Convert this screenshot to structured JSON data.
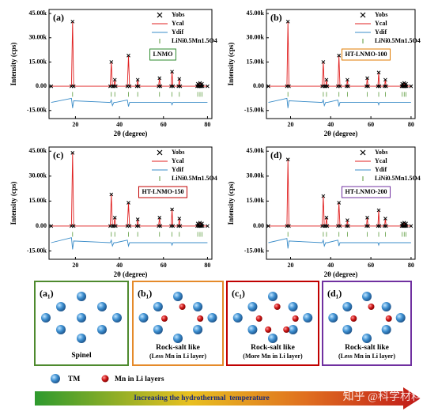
{
  "chart_data": [
    {
      "type": "xrd",
      "panel_label": "(a)",
      "sample": "LNMO",
      "sample_color": "#2e8b2e",
      "xlabel": "2θ (degree)",
      "ylabel": "Intensity (cps)",
      "xlim": [
        8,
        82
      ],
      "xticks": [
        20,
        40,
        60,
        80
      ],
      "ylim": [
        -20000,
        47500
      ],
      "yticks": [
        {
          "value": 45000,
          "label": "45.00k"
        },
        {
          "value": 30000,
          "label": "30.00k"
        },
        {
          "value": 15000,
          "label": "15.00k"
        },
        {
          "value": 0,
          "label": "0.00"
        },
        {
          "value": -15000,
          "label": "-15.00k"
        }
      ],
      "x": [
        9,
        18.2,
        18.7,
        19.2,
        35.8,
        36.3,
        36.8,
        37.5,
        37.9,
        38.3,
        43.6,
        44.1,
        44.6,
        47.9,
        48.3,
        48.7,
        57.8,
        58.2,
        58.6,
        63.5,
        63.9,
        64.3,
        66.8,
        67.2,
        67.6,
        75.3,
        75.6,
        75.9,
        76.3,
        76.6,
        76.9,
        77.2,
        77.5,
        77.8,
        80
      ],
      "series": [
        {
          "name": "Yobs",
          "color": "#000000",
          "values": [
            0,
            0,
            40000,
            0,
            0,
            15000,
            0,
            0,
            4000,
            0,
            0,
            19000,
            0,
            0,
            4000,
            0,
            0,
            5000,
            0,
            0,
            9000,
            0,
            0,
            4500,
            0,
            0,
            1500,
            0,
            0,
            2000,
            0,
            0,
            1500,
            0,
            0
          ]
        },
        {
          "name": "Ycal",
          "color": "#e02020",
          "values": [
            0,
            0,
            40000,
            0,
            0,
            15000,
            0,
            0,
            4000,
            0,
            0,
            19000,
            0,
            0,
            4000,
            0,
            0,
            5000,
            0,
            0,
            9000,
            0,
            0,
            4500,
            0,
            0,
            1500,
            0,
            0,
            2000,
            0,
            0,
            1500,
            0,
            0
          ]
        },
        {
          "name": "Ydif",
          "color": "#3a8cc8",
          "values": [
            -10000,
            -7500,
            -13500,
            -9000,
            -10000,
            -8500,
            -12000,
            -10000,
            -10000,
            -10000,
            -8500,
            -12500,
            -10000,
            -10000,
            -10000,
            -10000,
            -10000,
            -10000,
            -10000,
            -10000,
            -11500,
            -10000,
            -10000,
            -10000,
            -10000,
            -10000,
            -10000,
            -10000,
            -10000,
            -10000,
            -10000,
            -10000,
            -10000,
            -10000,
            -10000
          ]
        }
      ],
      "bragg": {
        "name": "LiNi0.5Mn1.5O4",
        "color": "#5a9a3a",
        "x": [
          18.7,
          36.3,
          37.9,
          44.1,
          48.3,
          58.2,
          63.9,
          67.2,
          75.6,
          76.6,
          77.5
        ]
      }
    },
    {
      "type": "xrd",
      "panel_label": "(b)",
      "sample": "HT-LNMO-100",
      "sample_color": "#e07b00",
      "xlabel": "2θ (degree)",
      "ylabel": "Intensity (cps)",
      "xlim": [
        8,
        82
      ],
      "xticks": [
        20,
        40,
        60,
        80
      ],
      "ylim": [
        -20000,
        47500
      ],
      "yticks": [
        {
          "value": 45000,
          "label": "45.00k"
        },
        {
          "value": 30000,
          "label": "30.00k"
        },
        {
          "value": 15000,
          "label": "15.00k"
        },
        {
          "value": 0,
          "label": "0.00"
        },
        {
          "value": -15000,
          "label": "-15.00k"
        }
      ],
      "x": [
        9,
        18.2,
        18.7,
        19.2,
        35.8,
        36.3,
        36.8,
        37.5,
        37.9,
        38.3,
        43.6,
        44.1,
        44.6,
        47.9,
        48.3,
        48.7,
        57.8,
        58.2,
        58.6,
        63.5,
        63.9,
        64.3,
        66.8,
        67.2,
        67.6,
        75.3,
        75.6,
        75.9,
        76.3,
        76.6,
        76.9,
        77.2,
        77.5,
        77.8,
        80
      ],
      "series": [
        {
          "name": "Yobs",
          "color": "#000000",
          "values": [
            0,
            0,
            40000,
            0,
            0,
            15000,
            0,
            0,
            4000,
            0,
            0,
            19000,
            0,
            0,
            4000,
            0,
            0,
            5000,
            0,
            0,
            8500,
            0,
            0,
            4000,
            0,
            0,
            1500,
            0,
            0,
            2000,
            0,
            0,
            1500,
            0,
            0
          ]
        },
        {
          "name": "Ycal",
          "color": "#e02020",
          "values": [
            0,
            0,
            40000,
            0,
            0,
            15000,
            0,
            0,
            4000,
            0,
            0,
            19000,
            0,
            0,
            4000,
            0,
            0,
            5000,
            0,
            0,
            8500,
            0,
            0,
            4000,
            0,
            0,
            1500,
            0,
            0,
            2000,
            0,
            0,
            1500,
            0,
            0
          ]
        },
        {
          "name": "Ydif",
          "color": "#3a8cc8",
          "values": [
            -10000,
            -7500,
            -13500,
            -9000,
            -10000,
            -8500,
            -12000,
            -10000,
            -10000,
            -10000,
            -8500,
            -12500,
            -10000,
            -10000,
            -10000,
            -10000,
            -10000,
            -10000,
            -10000,
            -10000,
            -11500,
            -10000,
            -10000,
            -10000,
            -10000,
            -10000,
            -10000,
            -10000,
            -10000,
            -10000,
            -10000,
            -10000,
            -10000,
            -10000,
            -10000
          ]
        }
      ],
      "bragg": {
        "name": "LiNi0.5Mn1.5O4",
        "color": "#5a9a3a",
        "x": [
          18.7,
          36.3,
          37.9,
          44.1,
          48.3,
          58.2,
          63.9,
          67.2,
          75.6,
          76.6,
          77.5
        ]
      }
    },
    {
      "type": "xrd",
      "panel_label": "(c)",
      "sample": "HT-LNMO-150",
      "sample_color": "#c00000",
      "xlabel": "2θ (degree)",
      "ylabel": "Intensity (cps)",
      "xlim": [
        8,
        82
      ],
      "xticks": [
        20,
        40,
        60,
        80
      ],
      "ylim": [
        -20000,
        47500
      ],
      "yticks": [
        {
          "value": 45000,
          "label": "45.00k"
        },
        {
          "value": 30000,
          "label": "30.00k"
        },
        {
          "value": 15000,
          "label": "15.00k"
        },
        {
          "value": 0,
          "label": "0.00"
        },
        {
          "value": -15000,
          "label": "-15.00k"
        }
      ],
      "x": [
        9,
        18.2,
        18.7,
        19.2,
        35.8,
        36.3,
        36.8,
        37.5,
        37.9,
        38.3,
        43.6,
        44.1,
        44.6,
        47.9,
        48.3,
        48.7,
        57.8,
        58.2,
        58.6,
        63.5,
        63.9,
        64.3,
        66.8,
        67.2,
        67.6,
        75.3,
        75.6,
        75.9,
        76.3,
        76.6,
        76.9,
        77.2,
        77.5,
        77.8,
        80
      ],
      "series": [
        {
          "name": "Yobs",
          "color": "#000000",
          "values": [
            0,
            0,
            44000,
            0,
            0,
            19000,
            0,
            0,
            5000,
            0,
            0,
            14000,
            0,
            0,
            4000,
            0,
            0,
            5000,
            0,
            0,
            10000,
            0,
            0,
            4500,
            0,
            0,
            1500,
            0,
            0,
            2000,
            0,
            0,
            1500,
            0,
            0
          ]
        },
        {
          "name": "Ycal",
          "color": "#e02020",
          "values": [
            0,
            0,
            44000,
            0,
            0,
            19000,
            0,
            0,
            5000,
            0,
            0,
            14000,
            0,
            0,
            4000,
            0,
            0,
            5000,
            0,
            0,
            10000,
            0,
            0,
            4500,
            0,
            0,
            1500,
            0,
            0,
            2000,
            0,
            0,
            1500,
            0,
            0
          ]
        },
        {
          "name": "Ydif",
          "color": "#3a8cc8",
          "values": [
            -10000,
            -7000,
            -14000,
            -9000,
            -10000,
            -8500,
            -12000,
            -10000,
            -10000,
            -10000,
            -8500,
            -12000,
            -10000,
            -10000,
            -10000,
            -10000,
            -10000,
            -10000,
            -10000,
            -10000,
            -11500,
            -10000,
            -10000,
            -10000,
            -10000,
            -10000,
            -10000,
            -10000,
            -10000,
            -10000,
            -10000,
            -10000,
            -10000,
            -10000,
            -10000
          ]
        }
      ],
      "bragg": {
        "name": "LiNi0.5Mn1.5O4",
        "color": "#5a9a3a",
        "x": [
          18.7,
          36.3,
          37.9,
          44.1,
          48.3,
          58.2,
          63.9,
          67.2,
          75.6,
          76.6,
          77.5
        ]
      }
    },
    {
      "type": "xrd",
      "panel_label": "(d)",
      "sample": "HT-LNMO-200",
      "sample_color": "#7030a0",
      "xlabel": "2θ (degree)",
      "ylabel": "Intensity (cps)",
      "xlim": [
        8,
        82
      ],
      "xticks": [
        20,
        40,
        60,
        80
      ],
      "ylim": [
        -20000,
        47500
      ],
      "yticks": [
        {
          "value": 45000,
          "label": "45.00k"
        },
        {
          "value": 30000,
          "label": "30.00k"
        },
        {
          "value": 15000,
          "label": "15.00k"
        },
        {
          "value": 0,
          "label": "0.00"
        },
        {
          "value": -15000,
          "label": "-15.00k"
        }
      ],
      "x": [
        9,
        18.2,
        18.7,
        19.2,
        35.8,
        36.3,
        36.8,
        37.5,
        37.9,
        38.3,
        43.6,
        44.1,
        44.6,
        47.9,
        48.3,
        48.7,
        57.8,
        58.2,
        58.6,
        63.5,
        63.9,
        64.3,
        66.8,
        67.2,
        67.6,
        75.3,
        75.6,
        75.9,
        76.3,
        76.6,
        76.9,
        77.2,
        77.5,
        77.8,
        80
      ],
      "series": [
        {
          "name": "Yobs",
          "color": "#000000",
          "values": [
            0,
            0,
            40000,
            0,
            0,
            18000,
            0,
            0,
            5000,
            0,
            0,
            14000,
            0,
            0,
            3500,
            0,
            0,
            5000,
            0,
            0,
            9500,
            0,
            0,
            4500,
            0,
            0,
            1500,
            0,
            0,
            2000,
            0,
            0,
            1500,
            0,
            0
          ]
        },
        {
          "name": "Ycal",
          "color": "#e02020",
          "values": [
            0,
            0,
            40000,
            0,
            0,
            18000,
            0,
            0,
            5000,
            0,
            0,
            14000,
            0,
            0,
            3500,
            0,
            0,
            5000,
            0,
            0,
            9500,
            0,
            0,
            4500,
            0,
            0,
            1500,
            0,
            0,
            2000,
            0,
            0,
            1500,
            0,
            0
          ]
        },
        {
          "name": "Ydif",
          "color": "#3a8cc8",
          "values": [
            -10000,
            -7500,
            -13500,
            -9000,
            -10000,
            -8500,
            -12000,
            -10000,
            -10000,
            -10000,
            -8500,
            -12000,
            -10000,
            -10000,
            -10000,
            -10000,
            -10000,
            -10000,
            -10000,
            -10000,
            -11500,
            -10000,
            -10000,
            -10000,
            -10000,
            -10000,
            -10000,
            -10000,
            -10000,
            -10000,
            -10000,
            -10000,
            -10000,
            -10000,
            -10000
          ]
        }
      ],
      "bragg": {
        "name": "LiNi0.5Mn1.5O4",
        "color": "#5a9a3a",
        "x": [
          18.7,
          36.3,
          37.9,
          44.1,
          48.3,
          58.2,
          63.9,
          67.2,
          75.6,
          76.6,
          77.5
        ]
      }
    }
  ],
  "panels": [
    {
      "label": "(a₁)",
      "caption": [
        "Spinel"
      ],
      "color": "#4e8a2e"
    },
    {
      "label": "(b₁)",
      "caption": [
        "Rock-salt like",
        "(Less Mn in Li layer)"
      ],
      "color": "#e58a2a"
    },
    {
      "label": "(c₁)",
      "caption": [
        "Rock-salt like",
        "(More Mn in Li layer)"
      ],
      "color": "#c00000"
    },
    {
      "label": "(d₁)",
      "caption": [
        "Rock-salt like",
        "(Less Mn in Li layer)"
      ],
      "color": "#7030a0"
    }
  ],
  "legend": [
    "TM",
    "Mn in Li layers"
  ],
  "arrow": "Increasing the hydrothermal  temperature",
  "watermark": "知乎 @科学材料站"
}
